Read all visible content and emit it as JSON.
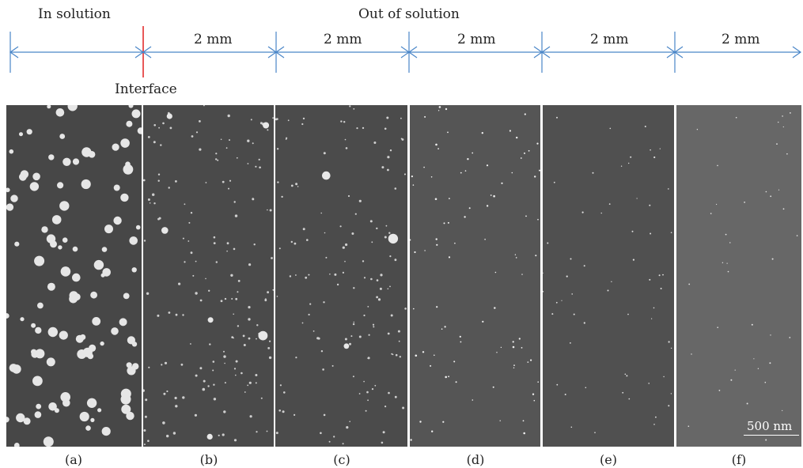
{
  "header": {
    "in_solution": "In solution",
    "out_of_solution": "Out of solution",
    "interface": "Interface",
    "segment_labels": [
      "2 mm",
      "2 mm",
      "2 mm",
      "2 mm",
      "2 mm"
    ]
  },
  "panels": [
    {
      "caption": "(a)",
      "background": "#474747",
      "particle_size": "large",
      "particle_density": "high"
    },
    {
      "caption": "(b)",
      "background": "#4a4a4a",
      "particle_size": "small",
      "particle_density": "medium"
    },
    {
      "caption": "(c)",
      "background": "#4b4b4b",
      "particle_size": "small",
      "particle_density": "medium"
    },
    {
      "caption": "(d)",
      "background": "#555555",
      "particle_size": "tiny",
      "particle_density": "low"
    },
    {
      "caption": "(e)",
      "background": "#505050",
      "particle_size": "tiny",
      "particle_density": "low"
    },
    {
      "caption": "(f)",
      "background": "#676767",
      "particle_size": "tiny",
      "particle_density": "very low"
    }
  ],
  "scale_bar": {
    "label": "500 nm"
  },
  "colors": {
    "arrow": "#4a86c8",
    "interface_line": "#e02020"
  }
}
